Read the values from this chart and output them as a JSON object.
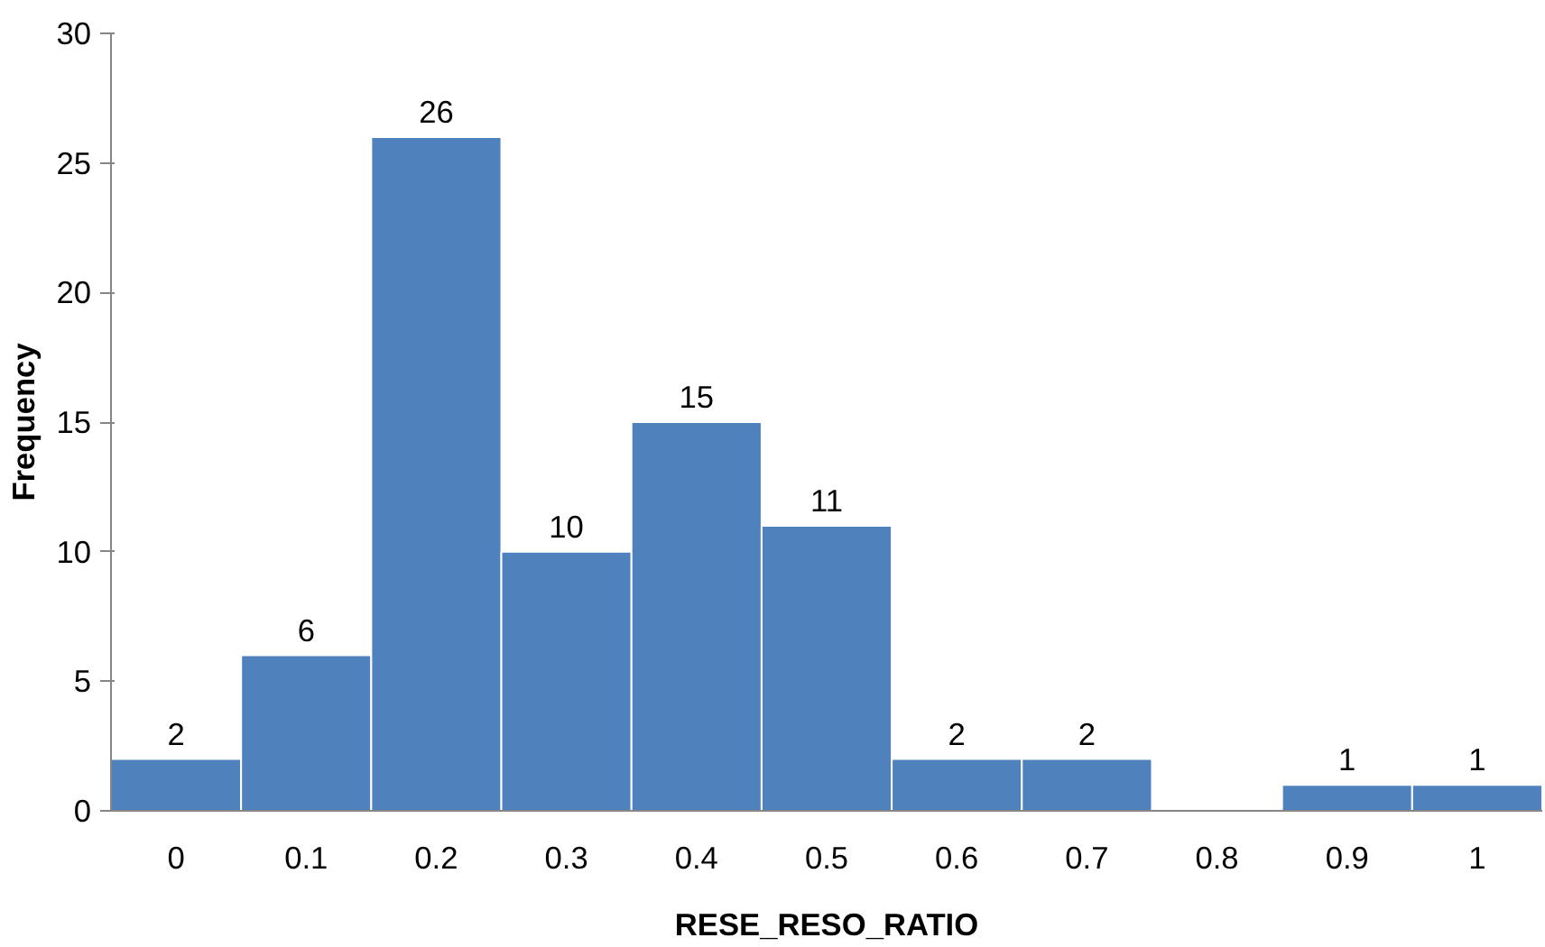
{
  "chart_data": {
    "type": "bar",
    "xlabel": "RESE_RESO_RATIO",
    "ylabel": "Frequency",
    "categories": [
      "0",
      "0.1",
      "0.2",
      "0.3",
      "0.4",
      "0.5",
      "0.6",
      "0.7",
      "0.8",
      "0.9",
      "1"
    ],
    "values": [
      2,
      6,
      26,
      10,
      15,
      11,
      2,
      2,
      0,
      1,
      1
    ],
    "value_labels": [
      "2",
      "6",
      "26",
      "10",
      "15",
      "11",
      "2",
      "2",
      null,
      "1",
      "1"
    ],
    "color": "#4f81bd",
    "ylim": [
      0,
      30
    ],
    "yticks": [
      0,
      5,
      10,
      15,
      20,
      25,
      30
    ]
  }
}
